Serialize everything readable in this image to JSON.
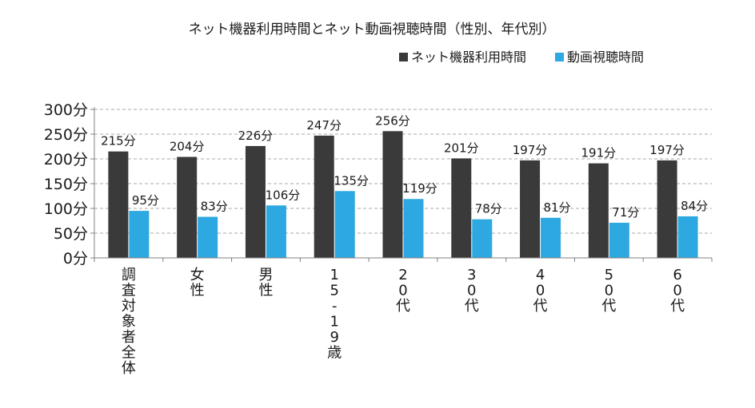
{
  "chart_data": {
    "type": "bar",
    "title": "ネット機器利用時間とネット動画視聴時間（性別、年代別）",
    "categories": [
      "調査対象者全体",
      "女性",
      "男性",
      "15-19歳",
      "20代",
      "30代",
      "40代",
      "50代",
      "60代"
    ],
    "series": [
      {
        "name": "ネット機器利用時間",
        "values": [
          215,
          204,
          226,
          247,
          256,
          201,
          197,
          191,
          197
        ],
        "color": "#3a3a3a"
      },
      {
        "name": "動画視聴時間",
        "values": [
          95,
          83,
          106,
          135,
          119,
          78,
          81,
          71,
          84
        ],
        "color": "#2ea8e0"
      }
    ],
    "unit": "分",
    "ylim": [
      0,
      300
    ],
    "yticks": [
      0,
      50,
      100,
      150,
      200,
      250,
      300
    ],
    "ytick_labels": [
      "0分",
      "50分",
      "100分",
      "150分",
      "200分",
      "250分",
      "300分"
    ],
    "grid": "horizontal-dashed",
    "legend_position": "top-right",
    "value_labels": true
  }
}
